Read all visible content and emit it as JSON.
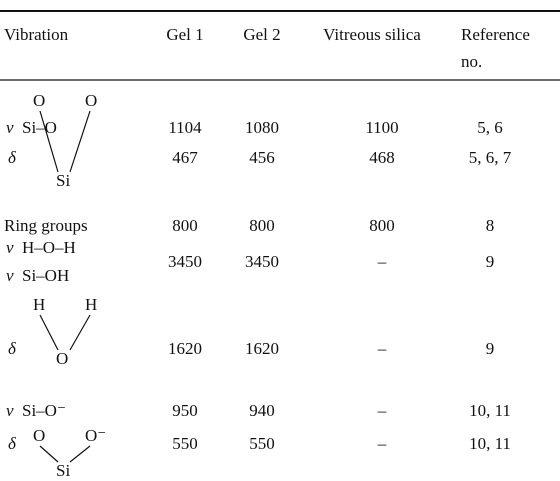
{
  "table": {
    "header": [
      "Vibration",
      "Gel 1",
      "Gel 2",
      "Vitreous silica",
      [
        "Reference",
        "no."
      ]
    ],
    "rows": [
      [
        {
          "lines": [
            {
              "mode": "ν",
              "group": "Si–O"
            }
          ]
        },
        1104,
        1080,
        1100,
        "5, 6"
      ],
      [
        {
          "mode": "δ",
          "atoms": [
            "O",
            "O",
            "Si"
          ]
        },
        467,
        456,
        468,
        "5, 6, 7"
      ],
      [
        {
          "lines": [
            {
              "group": "Ring groups"
            }
          ]
        },
        800,
        800,
        800,
        "8"
      ],
      [
        {
          "lines": [
            {
              "mode": "ν",
              "group": "H–O–H"
            },
            {
              "mode": "ν",
              "group": "Si–OH"
            }
          ]
        },
        3450,
        3450,
        "–",
        "9"
      ],
      [
        {
          "mode": "δ",
          "atoms": [
            "H",
            "H",
            "O"
          ]
        },
        1620,
        1620,
        "–",
        "9"
      ],
      [
        {
          "lines": [
            {
              "mode": "ν",
              "group": "Si–O⁻"
            }
          ]
        },
        950,
        940,
        "–",
        "10, 11"
      ],
      [
        {
          "mode": "δ",
          "atoms": [
            "O",
            "O⁻",
            "Si"
          ]
        },
        550,
        550,
        "–",
        "10, 11"
      ]
    ]
  }
}
